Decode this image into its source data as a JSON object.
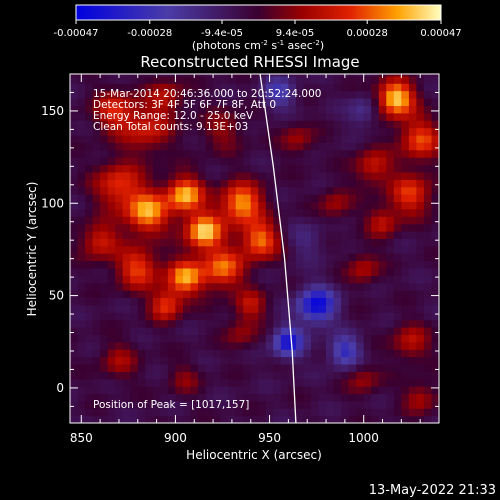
{
  "chart_data": {
    "type": "heatmap",
    "title": "Reconstructed RHESSI Image",
    "xlabel": "Heliocentric X (arcsec)",
    "ylabel": "Heliocentric Y (arcsec)",
    "x_ticks": [
      850,
      900,
      950,
      1000
    ],
    "y_ticks": [
      0,
      50,
      100,
      150
    ],
    "xlim": [
      844,
      1040
    ],
    "ylim": [
      -19,
      170
    ],
    "colorbar": {
      "ticks": [
        "-0.00047",
        "-0.00028",
        "-9.4e-05",
        "9.4e-05",
        "0.00028",
        "0.00047"
      ],
      "values": [
        -0.00047,
        -0.00028,
        -9.4e-05,
        9.4e-05,
        0.00028,
        0.00047
      ],
      "range": [
        -0.00047,
        0.00047
      ],
      "unit_prefix": "(photons cm",
      "unit_exp1": "-2",
      "unit_mid": " s",
      "unit_exp2": "-1",
      "unit_mid2": " asec",
      "unit_exp3": "-2",
      "unit_suffix": ")"
    },
    "info": [
      "15-Mar-2014 20:46:36.000 to 20:52:24.000",
      "Detectors: 3F 4F 5F 6F 7F 8F, Att 0",
      "Energy Range: 12.0 - 25.0 keV",
      "Clean     Total counts: 9.13E+03"
    ],
    "peak_label": "Position of Peak = [1017,157]",
    "peak": [
      1017,
      157
    ],
    "limb": [
      [
        945,
        170
      ],
      [
        952,
        120
      ],
      [
        958,
        70
      ],
      [
        962,
        20
      ],
      [
        964,
        -19
      ]
    ],
    "blobs": [
      {
        "x": 868,
        "y": 150,
        "v": 0.00025,
        "s": 8
      },
      {
        "x": 885,
        "y": 140,
        "v": 0.00022,
        "s": 9
      },
      {
        "x": 895,
        "y": 158,
        "v": 0.00018,
        "s": 7
      },
      {
        "x": 925,
        "y": 140,
        "v": 0.00014,
        "s": 8
      },
      {
        "x": 870,
        "y": 110,
        "v": 0.00028,
        "s": 9
      },
      {
        "x": 885,
        "y": 95,
        "v": 0.0004,
        "s": 8
      },
      {
        "x": 905,
        "y": 105,
        "v": 0.00042,
        "s": 7
      },
      {
        "x": 915,
        "y": 85,
        "v": 0.00045,
        "s": 7
      },
      {
        "x": 935,
        "y": 100,
        "v": 0.0004,
        "s": 8
      },
      {
        "x": 945,
        "y": 80,
        "v": 0.00036,
        "s": 7
      },
      {
        "x": 925,
        "y": 65,
        "v": 0.00034,
        "s": 8
      },
      {
        "x": 905,
        "y": 60,
        "v": 0.00038,
        "s": 7
      },
      {
        "x": 880,
        "y": 65,
        "v": 0.0003,
        "s": 8
      },
      {
        "x": 860,
        "y": 80,
        "v": 0.00025,
        "s": 7
      },
      {
        "x": 895,
        "y": 45,
        "v": 0.00028,
        "s": 6
      },
      {
        "x": 940,
        "y": 45,
        "v": 0.0002,
        "s": 6
      },
      {
        "x": 1017,
        "y": 157,
        "v": 0.00047,
        "s": 7
      },
      {
        "x": 1030,
        "y": 135,
        "v": 0.0003,
        "s": 8
      },
      {
        "x": 1005,
        "y": 120,
        "v": 0.00022,
        "s": 7
      },
      {
        "x": 1025,
        "y": 105,
        "v": 0.00028,
        "s": 8
      },
      {
        "x": 1010,
        "y": 90,
        "v": 0.0002,
        "s": 6
      },
      {
        "x": 1000,
        "y": 65,
        "v": 0.00018,
        "s": 6
      },
      {
        "x": 985,
        "y": 100,
        "v": 0.00016,
        "s": 6
      },
      {
        "x": 1025,
        "y": 25,
        "v": 0.0002,
        "s": 7
      },
      {
        "x": 1030,
        "y": -5,
        "v": 0.00018,
        "s": 6
      },
      {
        "x": 1000,
        "y": 5,
        "v": 0.00015,
        "s": 6
      },
      {
        "x": 870,
        "y": 15,
        "v": 0.00016,
        "s": 7
      },
      {
        "x": 905,
        "y": 5,
        "v": 0.00012,
        "s": 6
      },
      {
        "x": 935,
        "y": 30,
        "v": 0.00014,
        "s": 6
      },
      {
        "x": 965,
        "y": 135,
        "v": 0.00016,
        "s": 6
      },
      {
        "x": 975,
        "y": 45,
        "v": -0.0004,
        "s": 7
      },
      {
        "x": 960,
        "y": 25,
        "v": -0.00035,
        "s": 6
      },
      {
        "x": 990,
        "y": 20,
        "v": -0.00028,
        "s": 6
      },
      {
        "x": 955,
        "y": 160,
        "v": -0.00022,
        "s": 6
      },
      {
        "x": 1000,
        "y": 150,
        "v": -0.00015,
        "s": 6
      },
      {
        "x": 970,
        "y": 80,
        "v": -0.0001,
        "s": 7
      }
    ]
  },
  "timestamp": "13-May-2022 21:33"
}
